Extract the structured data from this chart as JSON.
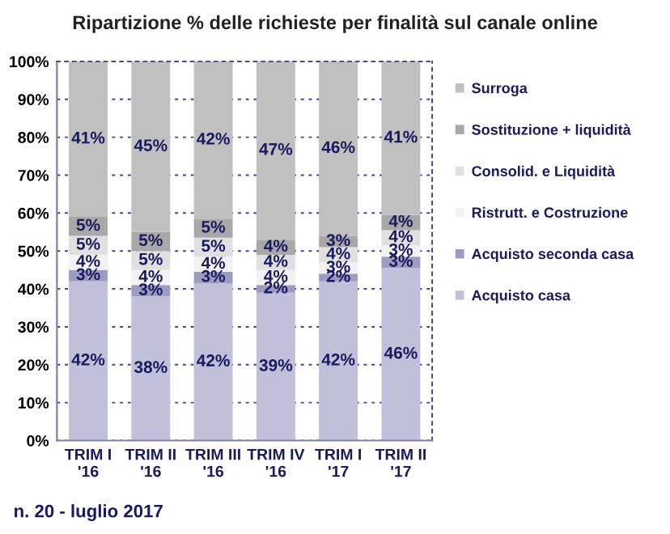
{
  "chart_data": {
    "type": "bar",
    "stacked": true,
    "title": "Ripartizione % delle richieste per finalità sul canale online",
    "categories": [
      "TRIM I\n'16",
      "TRIM II\n'16",
      "TRIM III\n'16",
      "TRIM IV\n'16",
      "TRIM I\n'17",
      "TRIM II\n'17"
    ],
    "series": [
      {
        "name": "Acquisto casa",
        "color": "#c0c0da",
        "values": [
          42,
          38,
          41.5,
          39,
          42,
          45.5
        ],
        "value_labels": [
          "42%",
          "38%",
          "42%",
          "39%",
          "42%",
          "46%"
        ]
      },
      {
        "name": "Acquisto seconda casa",
        "color": "#9c9cc0",
        "values": [
          3,
          3,
          3,
          2,
          2,
          3
        ],
        "value_labels": [
          "3%",
          "3%",
          "3%",
          "2%",
          "2%",
          "3%"
        ]
      },
      {
        "name": "Ristrutt. e Costruzione",
        "color": "#f2f2f2",
        "values": [
          4,
          4,
          4,
          4,
          3,
          3
        ],
        "value_labels": [
          "4%",
          "4%",
          "4%",
          "4%",
          "3%",
          "3%"
        ]
      },
      {
        "name": "Consolid. e Liquidità",
        "color": "#e0e0e0",
        "values": [
          5,
          5,
          5,
          4,
          4,
          4
        ],
        "value_labels": [
          "5%",
          "5%",
          "5%",
          "4%",
          "4%",
          "4%"
        ]
      },
      {
        "name": "Sostituzione + liquidità",
        "color": "#a8a8a8",
        "values": [
          5,
          5,
          5,
          4,
          3,
          4
        ],
        "value_labels": [
          "5%",
          "5%",
          "5%",
          "4%",
          "3%",
          "4%"
        ]
      },
      {
        "name": "Surroga",
        "color": "#c0c0c0",
        "values": [
          41,
          45,
          41.5,
          47,
          46,
          40.5
        ],
        "value_labels": [
          "41%",
          "45%",
          "42%",
          "47%",
          "46%",
          "41%"
        ]
      }
    ],
    "ylim": [
      0,
      100
    ],
    "yticks": [
      {
        "value": 0,
        "label": "0%"
      },
      {
        "value": 10,
        "label": "10%"
      },
      {
        "value": 20,
        "label": "20%"
      },
      {
        "value": 30,
        "label": "30%"
      },
      {
        "value": 40,
        "label": "40%"
      },
      {
        "value": 50,
        "label": "50%"
      },
      {
        "value": 60,
        "label": "60%"
      },
      {
        "value": 70,
        "label": "70%"
      },
      {
        "value": 80,
        "label": "80%"
      },
      {
        "value": 90,
        "label": "90%"
      },
      {
        "value": 100,
        "label": "100%"
      }
    ],
    "grid": "y",
    "legend": "right",
    "annotations": [
      "n. 20 - luglio 2017"
    ]
  }
}
